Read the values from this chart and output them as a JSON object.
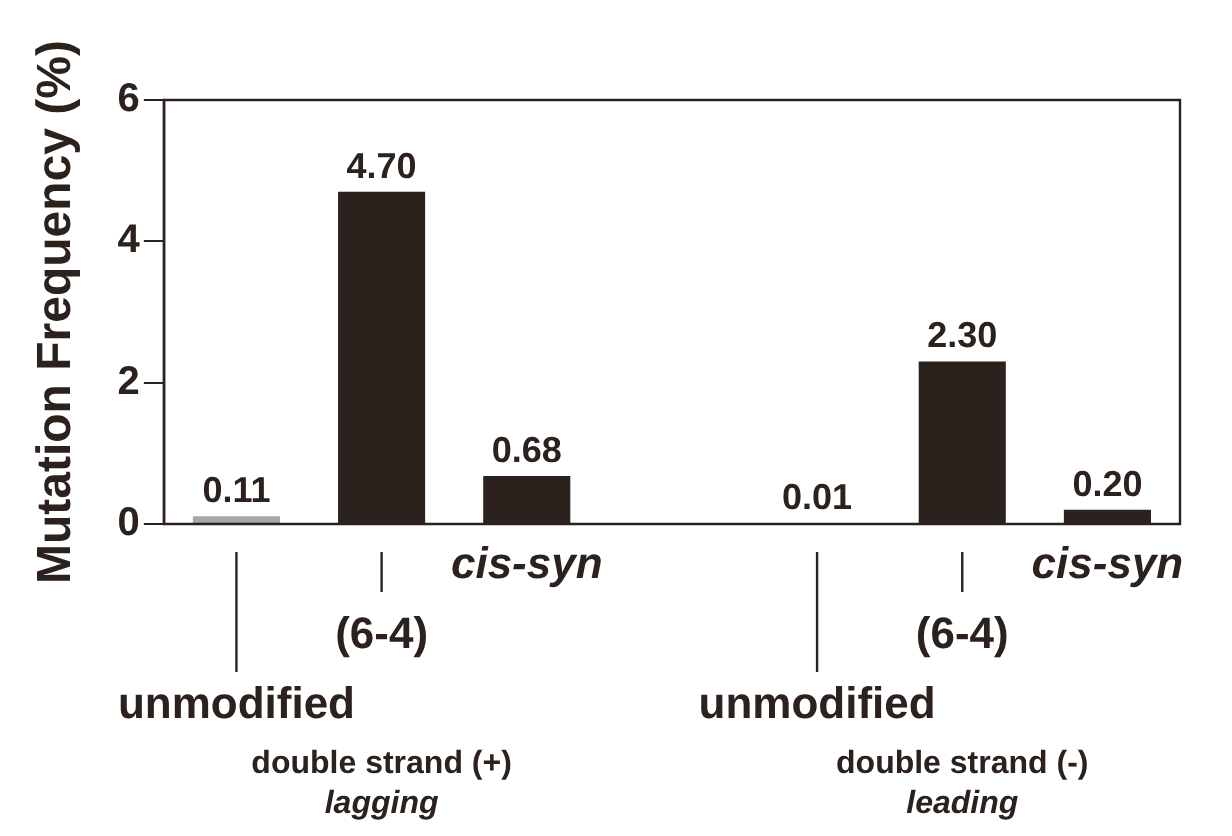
{
  "chart_data": {
    "type": "bar",
    "ylabel": "Mutation Frequency (%)",
    "categories": [
      "unmodified",
      "(6-4)",
      "cis-syn",
      null,
      "unmodified",
      "(6-4)",
      "cis-syn"
    ],
    "values": [
      0.11,
      4.7,
      0.68,
      null,
      0.01,
      2.3,
      0.2
    ],
    "colors": [
      "#a8a8a8",
      "#2b211d",
      "#2b211d",
      "#2b211d",
      "#2b211d",
      "#2b211d",
      "#2b211d"
    ],
    "value_labels": [
      "0.11",
      "4.70",
      "0.68",
      null,
      "0.01",
      "2.30",
      "0.20"
    ],
    "ylim": [
      0,
      6
    ],
    "yticks": [
      0,
      2,
      4,
      6
    ],
    "annotations": [
      "double strand (+)",
      "lagging",
      "double strand (-)",
      "leading"
    ],
    "legend": false
  }
}
